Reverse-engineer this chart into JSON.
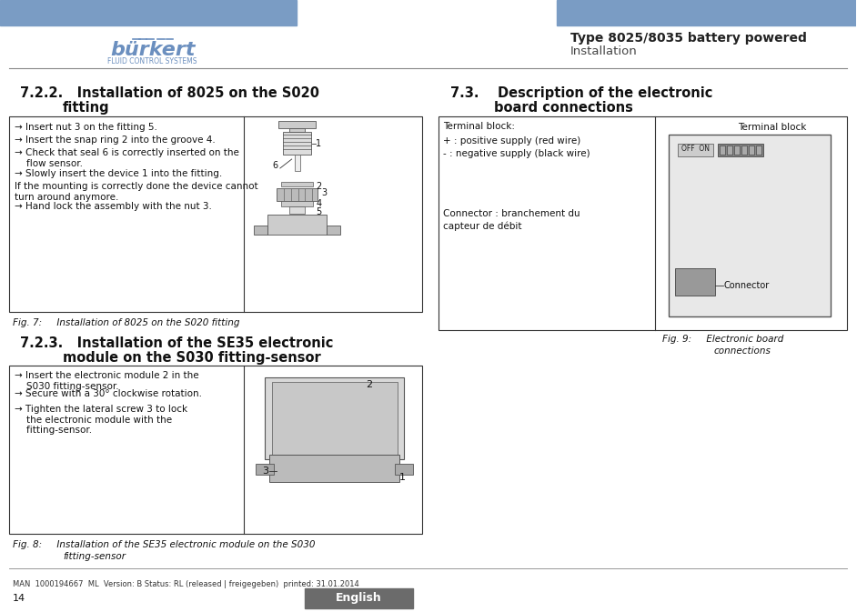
{
  "bg_color": "#ffffff",
  "header_bar_color": "#7a9cc4",
  "header_text_bold": "Type 8025/8035 battery powered",
  "header_text_normal": "Installation",
  "burkert_color": "#6b8fbf",
  "page_number": "14",
  "footer_text": "MAN  1000194667  ML  Version: B Status: RL (released | freigegeben)  printed: 31.01.2014",
  "english_btn_color": "#6b6b6b",
  "section_722_title_line1": "7.2.2.   Installation of 8025 on the S020",
  "section_722_title_line2": "fitting",
  "section_723_title_line1": "7.2.3.   Installation of the SE35 electronic",
  "section_723_title_line2": "module on the S030 fitting-sensor",
  "section_73_title_line1": "7.3.    Description of the electronic",
  "section_73_title_line2": "board connections",
  "bullet_722": [
    "→ Insert nut 3 on the fitting 5.",
    "→ Insert the snap ring 2 into the groove 4.",
    "→ Check that seal 6 is correctly inserted on the\n    flow sensor.",
    "→ Slowly insert the device 1 into the fitting.",
    "If the mounting is correctly done the device cannot\nturn around anymore.",
    "→ Hand lock the assembly with the nut 3."
  ],
  "bullet_723": [
    "→ Insert the electronic module 2 in the\n    S030 fitting-sensor.",
    "→ Secure with a 30° clockwise rotation.",
    "→ Tighten the lateral screw 3 to lock\n    the electronic module with the\n    fitting-sensor."
  ],
  "terminal_block_text": [
    "Terminal block:",
    "+ : positive supply (red wire)",
    "- : negative supply (black wire)",
    "",
    "Connector : branchement du",
    "capteur de débit"
  ],
  "fig7_caption": "Fig. 7:     Installation of 8025 on the S020 fitting",
  "fig8_caption_line1": "Fig. 8:     Installation of the SE35 electronic module on the S030",
  "fig8_caption_line2": "fitting-sensor",
  "fig9_caption_line1": "Fig. 9:     Electronic board",
  "fig9_caption_line2": "connections"
}
